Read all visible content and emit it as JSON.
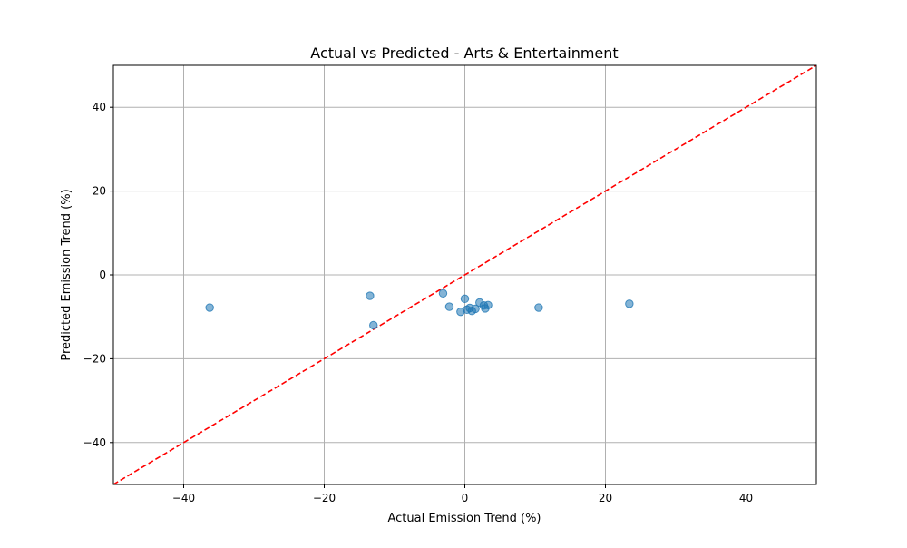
{
  "chart_data": {
    "type": "scatter",
    "title": "Actual vs Predicted - Arts & Entertainment",
    "xlabel": "Actual Emission Trend (%)",
    "ylabel": "Predicted Emission Trend (%)",
    "xlim": [
      -50,
      50
    ],
    "ylim": [
      -50,
      50
    ],
    "xticks": [
      -40,
      -20,
      0,
      20,
      40
    ],
    "yticks": [
      -40,
      -20,
      0,
      20,
      40
    ],
    "tick_labels": {
      "x": [
        "−40",
        "−20",
        "0",
        "20",
        "40"
      ],
      "y": [
        "−40",
        "−20",
        "0",
        "20",
        "40"
      ]
    },
    "grid": true,
    "reference_line": {
      "type": "y=x",
      "style": "dashed",
      "color": "#ff0000"
    },
    "point_color": "#1f77b4",
    "points": [
      {
        "x": -36.3,
        "y": -7.8
      },
      {
        "x": -13.5,
        "y": -5.0
      },
      {
        "x": -13.0,
        "y": -12.0
      },
      {
        "x": -3.1,
        "y": -4.4
      },
      {
        "x": -2.2,
        "y": -7.6
      },
      {
        "x": -0.6,
        "y": -8.8
      },
      {
        "x": 0.0,
        "y": -5.7
      },
      {
        "x": 0.3,
        "y": -8.3
      },
      {
        "x": 0.7,
        "y": -7.9
      },
      {
        "x": 1.0,
        "y": -8.6
      },
      {
        "x": 1.5,
        "y": -8.1
      },
      {
        "x": 2.1,
        "y": -6.6
      },
      {
        "x": 2.7,
        "y": -7.3
      },
      {
        "x": 2.9,
        "y": -8.0
      },
      {
        "x": 3.3,
        "y": -7.2
      },
      {
        "x": 10.5,
        "y": -7.8
      },
      {
        "x": 23.4,
        "y": -6.9
      }
    ]
  }
}
